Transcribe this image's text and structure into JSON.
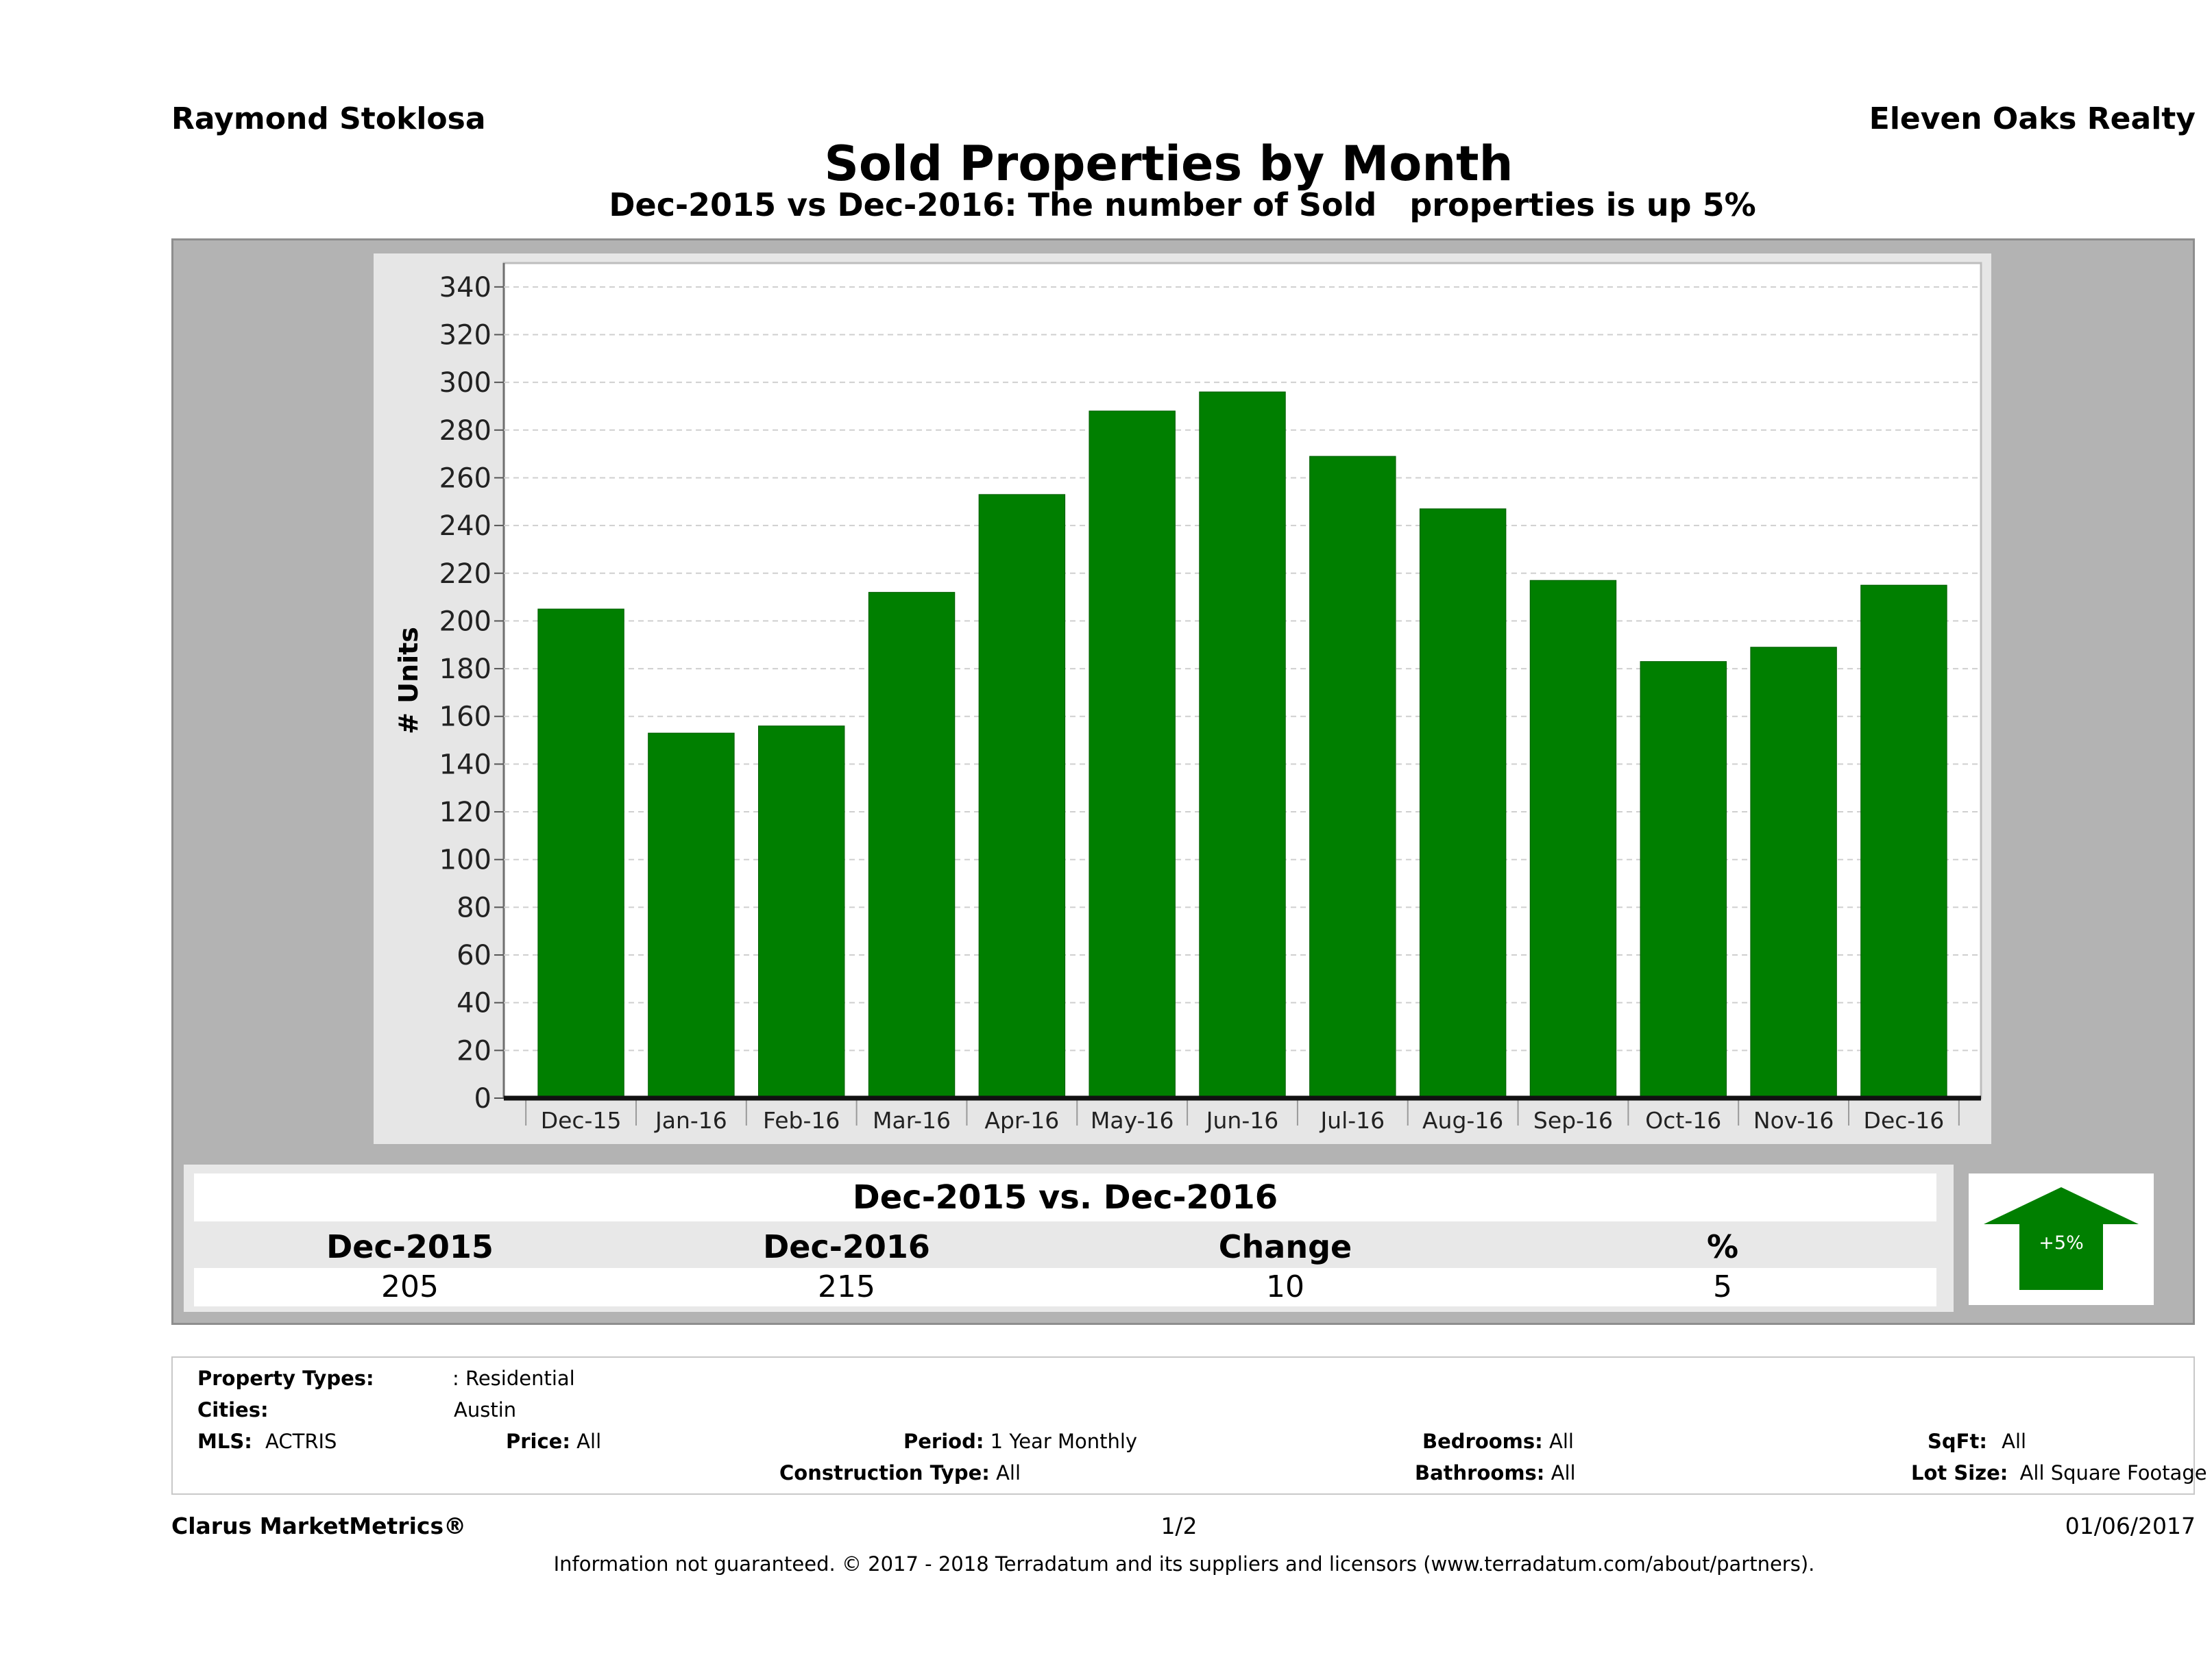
{
  "header": {
    "agent_name": "Raymond Stoklosa",
    "company": "Eleven Oaks Realty",
    "title": "Sold Properties by Month",
    "subtitle": "Dec-2015 vs Dec-2016: The number of Sold   properties is up 5%"
  },
  "chart_data": {
    "type": "bar",
    "categories": [
      "Dec-15",
      "Jan-16",
      "Feb-16",
      "Mar-16",
      "Apr-16",
      "May-16",
      "Jun-16",
      "Jul-16",
      "Aug-16",
      "Sep-16",
      "Oct-16",
      "Nov-16",
      "Dec-16"
    ],
    "values": [
      205,
      153,
      156,
      212,
      253,
      288,
      296,
      269,
      247,
      217,
      183,
      189,
      215
    ],
    "ylabel": "# Units",
    "xlabel": "",
    "ylim": [
      0,
      350
    ],
    "yticks": [
      0,
      20,
      40,
      60,
      80,
      100,
      120,
      140,
      160,
      180,
      200,
      220,
      240,
      260,
      280,
      300,
      320,
      340
    ],
    "grid": true,
    "bar_color": "#007f00"
  },
  "comparison": {
    "heading": "Dec-2015 vs. Dec-2016",
    "columns": [
      "Dec-2015",
      "Dec-2016",
      "Change",
      "%"
    ],
    "values": [
      "205",
      "215",
      "10",
      "5"
    ],
    "badge": "+5%",
    "badge_color": "#007f00"
  },
  "criteria": {
    "property_types_label": "Property Types:",
    "property_types_value": ": Residential",
    "cities_label": "Cities:",
    "cities_value": "Austin",
    "mls_label": "MLS:",
    "mls_value": "ACTRIS",
    "price_label": "Price:",
    "price_value": "All",
    "period_label": "Period:",
    "period_value": "1 Year Monthly",
    "construction_label": "Construction Type:",
    "construction_value": "All",
    "bedrooms_label": "Bedrooms:",
    "bedrooms_value": "All",
    "bathrooms_label": "Bathrooms:",
    "bathrooms_value": "All",
    "sqft_label": "SqFt:",
    "sqft_value": "All",
    "lotsize_label": "Lot Size:",
    "lotsize_value": "All Square Footage"
  },
  "footer": {
    "brand": "Clarus MarketMetrics®",
    "page": "1/2",
    "date": "01/06/2017",
    "disclaimer": "Information not guaranteed. © 2017 - 2018 Terradatum and its suppliers and licensors (www.terradatum.com/about/partners)."
  }
}
